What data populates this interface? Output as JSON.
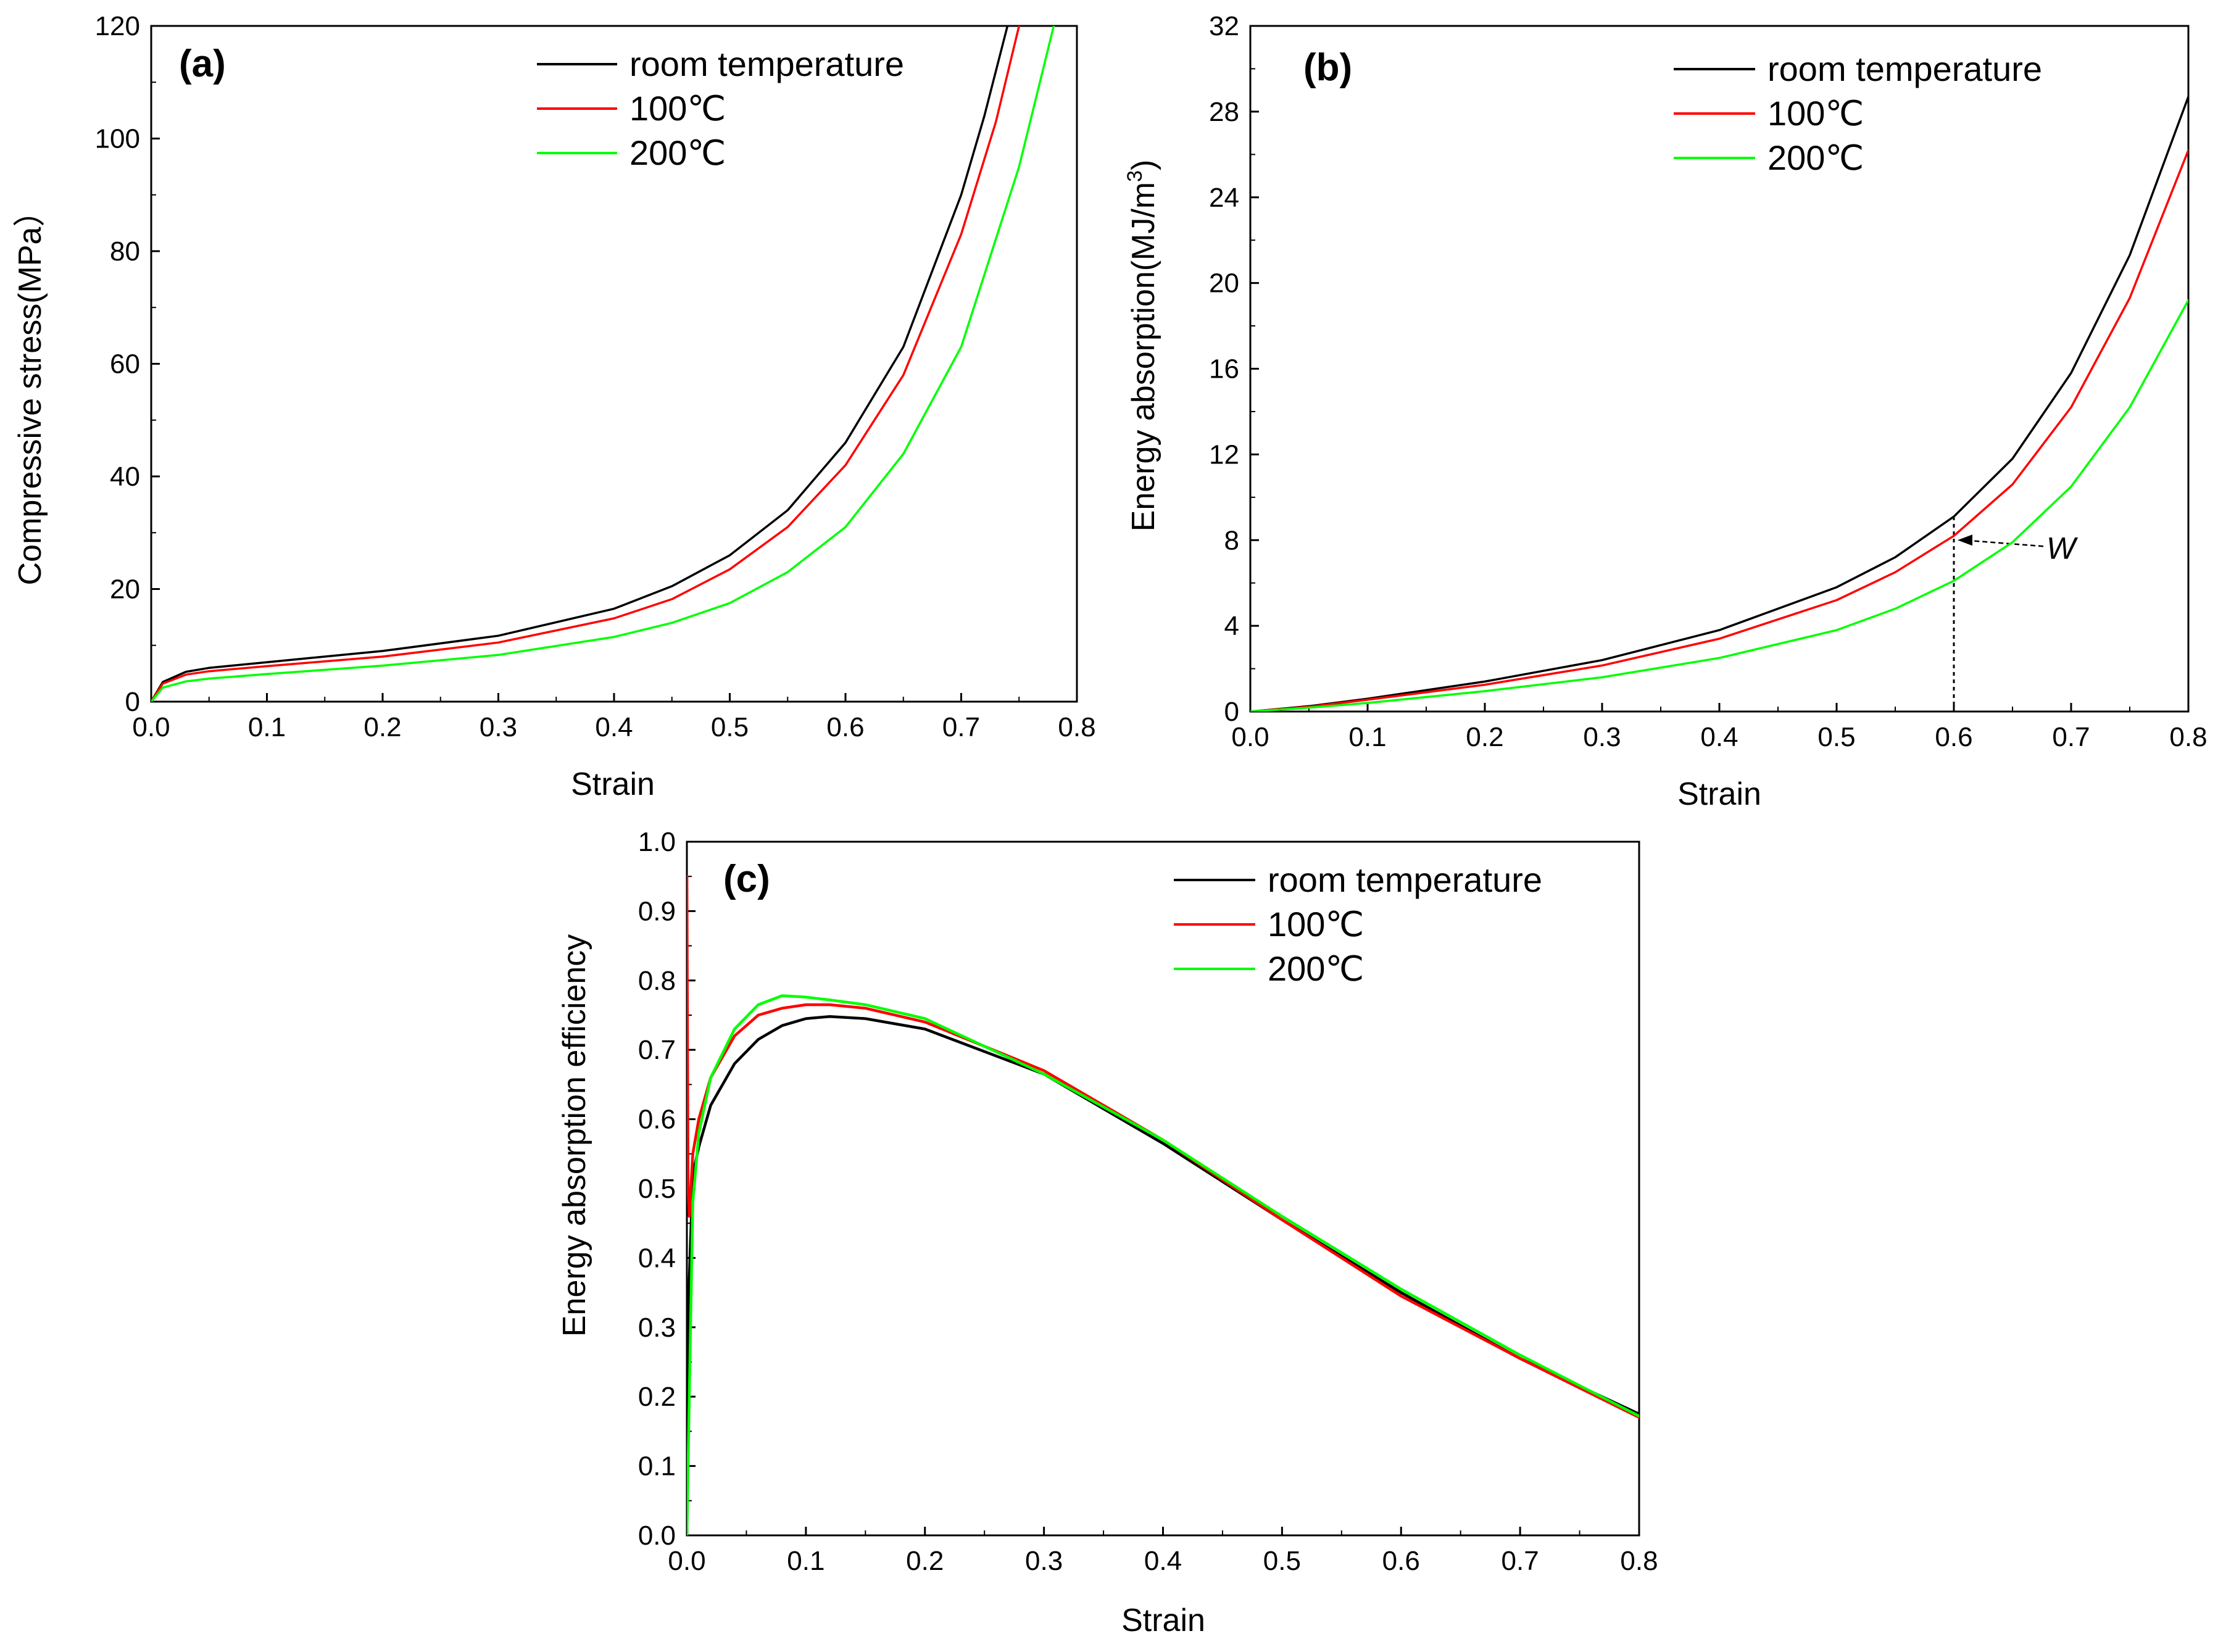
{
  "chart_data": [
    {
      "panel": "(a)",
      "type": "line",
      "xlabel": "Strain",
      "ylabel": "Compressive stress(MPa）",
      "xlim": [
        0,
        0.8
      ],
      "ylim": [
        0,
        120
      ],
      "xticks": [
        "0.0",
        "0.1",
        "0.2",
        "0.3",
        "0.4",
        "0.5",
        "0.6",
        "0.7",
        "0.8"
      ],
      "yticks": [
        "0",
        "20",
        "40",
        "60",
        "80",
        "100",
        "120"
      ],
      "legend_position": "top",
      "series": [
        {
          "name": "room temperature",
          "color": "#000000",
          "x": [
            0,
            0.01,
            0.03,
            0.05,
            0.1,
            0.2,
            0.3,
            0.4,
            0.45,
            0.5,
            0.55,
            0.6,
            0.65,
            0.7,
            0.72,
            0.74
          ],
          "y": [
            0,
            3.5,
            5.3,
            6.0,
            7.0,
            9.0,
            11.7,
            16.5,
            20.5,
            26,
            34,
            46,
            63,
            90,
            104,
            120
          ]
        },
        {
          "name": "100℃",
          "color": "#ff0000",
          "x": [
            0,
            0.01,
            0.03,
            0.05,
            0.1,
            0.2,
            0.3,
            0.4,
            0.45,
            0.5,
            0.55,
            0.6,
            0.65,
            0.7,
            0.73,
            0.75
          ],
          "y": [
            0,
            3.2,
            4.8,
            5.4,
            6.3,
            8.0,
            10.5,
            14.8,
            18.2,
            23.5,
            31,
            42,
            58,
            83,
            103,
            120
          ]
        },
        {
          "name": "200℃",
          "color": "#00ff00",
          "x": [
            0,
            0.01,
            0.03,
            0.05,
            0.1,
            0.2,
            0.3,
            0.4,
            0.45,
            0.5,
            0.55,
            0.6,
            0.65,
            0.7,
            0.75,
            0.78
          ],
          "y": [
            0,
            2.5,
            3.6,
            4.1,
            4.9,
            6.4,
            8.3,
            11.5,
            14.0,
            17.5,
            23,
            31,
            44,
            63,
            95,
            120
          ]
        }
      ]
    },
    {
      "panel": "(b)",
      "type": "line",
      "xlabel": "Strain",
      "ylabel": "Energy absorption(MJ/m",
      "ylabel_sup": "3",
      "ylabel_end": ")",
      "xlim": [
        0,
        0.8
      ],
      "ylim": [
        0,
        32
      ],
      "xticks": [
        "0.0",
        "0.1",
        "0.2",
        "0.3",
        "0.4",
        "0.5",
        "0.6",
        "0.7",
        "0.8"
      ],
      "yticks": [
        "0",
        "4",
        "8",
        "12",
        "16",
        "20",
        "24",
        "28",
        "32"
      ],
      "legend_position": "top-right",
      "annotation": {
        "text": "W",
        "x": 0.6,
        "y": 8
      },
      "series": [
        {
          "name": "room temperature",
          "color": "#000000",
          "x": [
            0,
            0.05,
            0.1,
            0.2,
            0.3,
            0.4,
            0.5,
            0.55,
            0.6,
            0.65,
            0.7,
            0.75,
            0.8
          ],
          "y": [
            0,
            0.25,
            0.6,
            1.4,
            2.4,
            3.8,
            5.8,
            7.2,
            9.1,
            11.8,
            15.8,
            21.3,
            28.7
          ]
        },
        {
          "name": "100℃",
          "color": "#ff0000",
          "x": [
            0,
            0.05,
            0.1,
            0.2,
            0.3,
            0.4,
            0.5,
            0.55,
            0.6,
            0.65,
            0.7,
            0.75,
            0.8
          ],
          "y": [
            0,
            0.22,
            0.55,
            1.25,
            2.15,
            3.4,
            5.2,
            6.5,
            8.2,
            10.6,
            14.2,
            19.3,
            26.2
          ]
        },
        {
          "name": "200℃",
          "color": "#00ff00",
          "x": [
            0,
            0.05,
            0.1,
            0.2,
            0.3,
            0.4,
            0.5,
            0.55,
            0.6,
            0.65,
            0.7,
            0.75,
            0.8
          ],
          "y": [
            0,
            0.18,
            0.4,
            0.95,
            1.6,
            2.5,
            3.8,
            4.8,
            6.1,
            7.9,
            10.5,
            14.2,
            19.2
          ]
        }
      ]
    },
    {
      "panel": "(c)",
      "type": "line",
      "xlabel": "Strain",
      "ylabel": "Energy absorption efficiency",
      "xlim": [
        0,
        0.8
      ],
      "ylim": [
        0,
        1.0
      ],
      "xticks": [
        "0.0",
        "0.1",
        "0.2",
        "0.3",
        "0.4",
        "0.5",
        "0.6",
        "0.7",
        "0.8"
      ],
      "yticks": [
        "0.0",
        "0.1",
        "0.2",
        "0.3",
        "0.4",
        "0.5",
        "0.6",
        "0.7",
        "0.8",
        "0.9",
        "1.0"
      ],
      "legend_position": "top-center",
      "series": [
        {
          "name": "room temperature",
          "color": "#000000",
          "x": [
            0,
            0.002,
            0.005,
            0.01,
            0.02,
            0.04,
            0.06,
            0.08,
            0.1,
            0.12,
            0.15,
            0.2,
            0.3,
            0.4,
            0.5,
            0.6,
            0.7,
            0.8
          ],
          "y": [
            0,
            0.37,
            0.52,
            0.56,
            0.62,
            0.68,
            0.715,
            0.735,
            0.745,
            0.748,
            0.745,
            0.73,
            0.665,
            0.565,
            0.455,
            0.35,
            0.255,
            0.175
          ]
        },
        {
          "name": "100℃",
          "color": "#ff0000",
          "x": [
            0,
            0.001,
            0.002,
            0.005,
            0.01,
            0.02,
            0.04,
            0.06,
            0.08,
            0.1,
            0.12,
            0.15,
            0.2,
            0.3,
            0.4,
            0.5,
            0.6,
            0.7,
            0.8
          ],
          "y": [
            0.95,
            0.5,
            0.46,
            0.55,
            0.6,
            0.66,
            0.72,
            0.75,
            0.76,
            0.765,
            0.765,
            0.76,
            0.74,
            0.67,
            0.57,
            0.455,
            0.345,
            0.255,
            0.17
          ]
        },
        {
          "name": "200℃",
          "color": "#00ff00",
          "x": [
            0,
            0.002,
            0.005,
            0.01,
            0.02,
            0.04,
            0.06,
            0.08,
            0.1,
            0.12,
            0.15,
            0.2,
            0.3,
            0.4,
            0.5,
            0.6,
            0.7,
            0.8
          ],
          "y": [
            0,
            0.2,
            0.48,
            0.58,
            0.66,
            0.73,
            0.765,
            0.778,
            0.776,
            0.772,
            0.765,
            0.745,
            0.665,
            0.57,
            0.46,
            0.355,
            0.26,
            0.172
          ]
        }
      ]
    }
  ]
}
